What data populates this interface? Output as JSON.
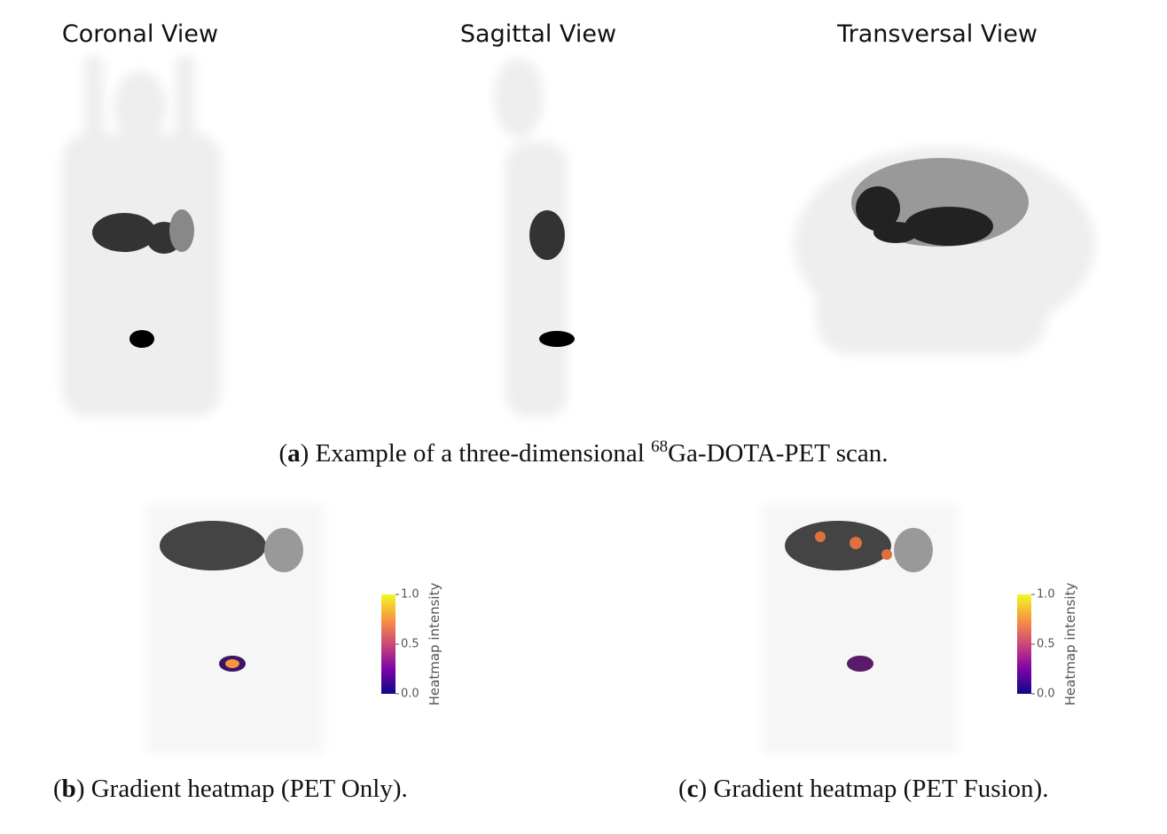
{
  "views": [
    {
      "title": "Coronal View"
    },
    {
      "title": "Sagittal View"
    },
    {
      "title": "Transversal View"
    }
  ],
  "caption_a": {
    "parts": [
      "(",
      "a",
      ") Example of a three-dimensional ",
      "68",
      "Ga-DOTA-PET scan."
    ]
  },
  "panels": [
    {
      "caption": {
        "parts": [
          "(",
          "b",
          ") Gradient heatmap (PET Only)."
        ]
      },
      "colorbar": {
        "label": "Heatmap intensity",
        "lim": [
          0,
          1
        ],
        "ticks": [
          {
            "value": 0,
            "label": "0.0"
          },
          {
            "value": 0.5,
            "label": "0.5"
          },
          {
            "value": 1,
            "label": "1.0"
          }
        ]
      }
    },
    {
      "caption": {
        "parts": [
          "(",
          "c",
          ") Gradient heatmap (PET Fusion)."
        ]
      },
      "colorbar": {
        "label": "Heatmap intensity",
        "lim": [
          0,
          1
        ],
        "ticks": [
          {
            "value": 0,
            "label": "0.0"
          },
          {
            "value": 0.5,
            "label": "0.5"
          },
          {
            "value": 1,
            "label": "1.0"
          }
        ]
      }
    }
  ]
}
